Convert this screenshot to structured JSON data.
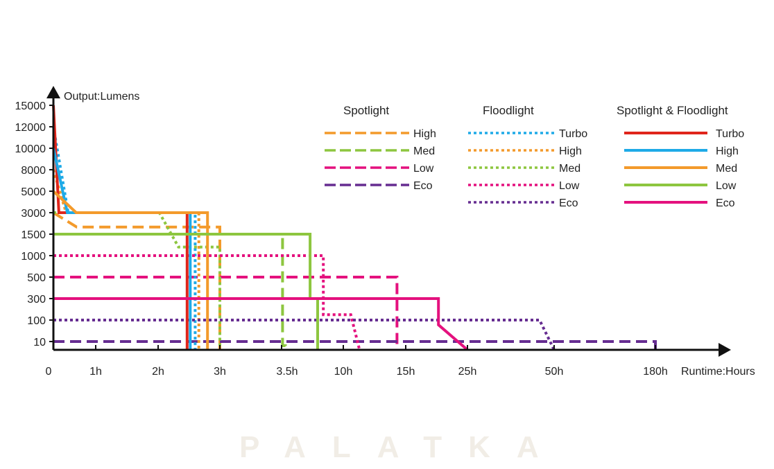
{
  "chart_data": {
    "type": "line",
    "ylabel": "Output:Lumens",
    "xlabel": "Runtime:Hours",
    "y_ticks": [
      15000,
      12000,
      10000,
      8000,
      5000,
      3000,
      1500,
      1000,
      500,
      300,
      100,
      10
    ],
    "x_ticks": [
      0,
      1,
      2,
      3,
      3.5,
      10,
      15,
      25,
      50,
      180
    ],
    "x_tick_labels": [
      "0",
      "1h",
      "2h",
      "3h",
      "3.5h",
      "10h",
      "15h",
      "25h",
      "50h",
      "180h"
    ],
    "x_scale": "non-uniform (ticks equally spaced by label, piecewise linear)",
    "y_scale": "non-uniform (ticks equally spaced by label, piecewise linear)",
    "legend_groups": [
      {
        "title": "Spotlight",
        "style": "dashed",
        "series": [
          {
            "name": "High",
            "color": "#f39a2b",
            "points": [
              [
                0,
                3000
              ],
              [
                0.55,
                2000
              ],
              [
                3,
                2000
              ],
              [
                3,
                0
              ]
            ]
          },
          {
            "name": "Med",
            "color": "#8dc63f",
            "points": [
              [
                0,
                1500
              ],
              [
                3.6,
                1500
              ],
              [
                3.6,
                5
              ],
              [
                3.9,
                5
              ],
              [
                3.9,
                0
              ]
            ]
          },
          {
            "name": "Low",
            "color": "#e4117e",
            "points": [
              [
                0,
                500
              ],
              [
                14.3,
                500
              ],
              [
                14.3,
                0
              ]
            ]
          },
          {
            "name": "Eco",
            "color": "#662d91",
            "points": [
              [
                0,
                10
              ],
              [
                180,
                10
              ],
              [
                180,
                0
              ]
            ]
          }
        ]
      },
      {
        "title": "Floodlight",
        "style": "dotted",
        "series": [
          {
            "name": "Turbo",
            "color": "#1eaae7",
            "points": [
              [
                0,
                12000
              ],
              [
                0.35,
                3000
              ],
              [
                2.6,
                3000
              ],
              [
                2.6,
                0
              ]
            ]
          },
          {
            "name": "High",
            "color": "#f39a2b",
            "points": [
              [
                0,
                8000
              ],
              [
                0.3,
                3000
              ],
              [
                2.66,
                3000
              ],
              [
                2.66,
                0
              ]
            ]
          },
          {
            "name": "Med",
            "color": "#8dc63f",
            "points": [
              [
                0,
                3000
              ],
              [
                2.02,
                3000
              ],
              [
                2.33,
                1200
              ],
              [
                3,
                1200
              ],
              [
                3,
                0
              ]
            ]
          },
          {
            "name": "Low",
            "color": "#e4117e",
            "points": [
              [
                0,
                1000
              ],
              [
                7.9,
                1000
              ],
              [
                7.9,
                150
              ],
              [
                10.6,
                150
              ],
              [
                11.3,
                0
              ]
            ]
          },
          {
            "name": "Eco",
            "color": "#662d91",
            "points": [
              [
                0,
                100
              ],
              [
                45.8,
                100
              ],
              [
                50,
                0
              ]
            ]
          }
        ]
      },
      {
        "title": "Spotlight & Floodlight",
        "style": "solid",
        "series": [
          {
            "name": "Turbo",
            "color": "#e0251b",
            "points": [
              [
                0,
                15000
              ],
              [
                0.13,
                3000
              ],
              [
                2.47,
                3000
              ],
              [
                2.47,
                0
              ]
            ]
          },
          {
            "name": "High",
            "color": "#1eaae7",
            "points": [
              [
                0,
                10000
              ],
              [
                0.33,
                3000
              ],
              [
                2.52,
                3000
              ],
              [
                2.52,
                0
              ]
            ]
          },
          {
            "name": "Med",
            "color": "#f39a2b",
            "points": [
              [
                0,
                5000
              ],
              [
                0.54,
                3000
              ],
              [
                2.8,
                3000
              ],
              [
                2.8,
                0
              ]
            ]
          },
          {
            "name": "Low",
            "color": "#8dc63f",
            "points": [
              [
                0,
                1500
              ],
              [
                6.5,
                1500
              ],
              [
                6.5,
                300
              ],
              [
                7.3,
                300
              ],
              [
                7.3,
                0
              ]
            ]
          },
          {
            "name": "Eco",
            "color": "#e4117e",
            "points": [
              [
                0,
                300
              ],
              [
                20.3,
                300
              ],
              [
                20.3,
                80
              ],
              [
                25,
                0
              ]
            ]
          }
        ]
      }
    ],
    "grid": false,
    "legend_placement": "top-right"
  },
  "watermark": "PALATKA"
}
